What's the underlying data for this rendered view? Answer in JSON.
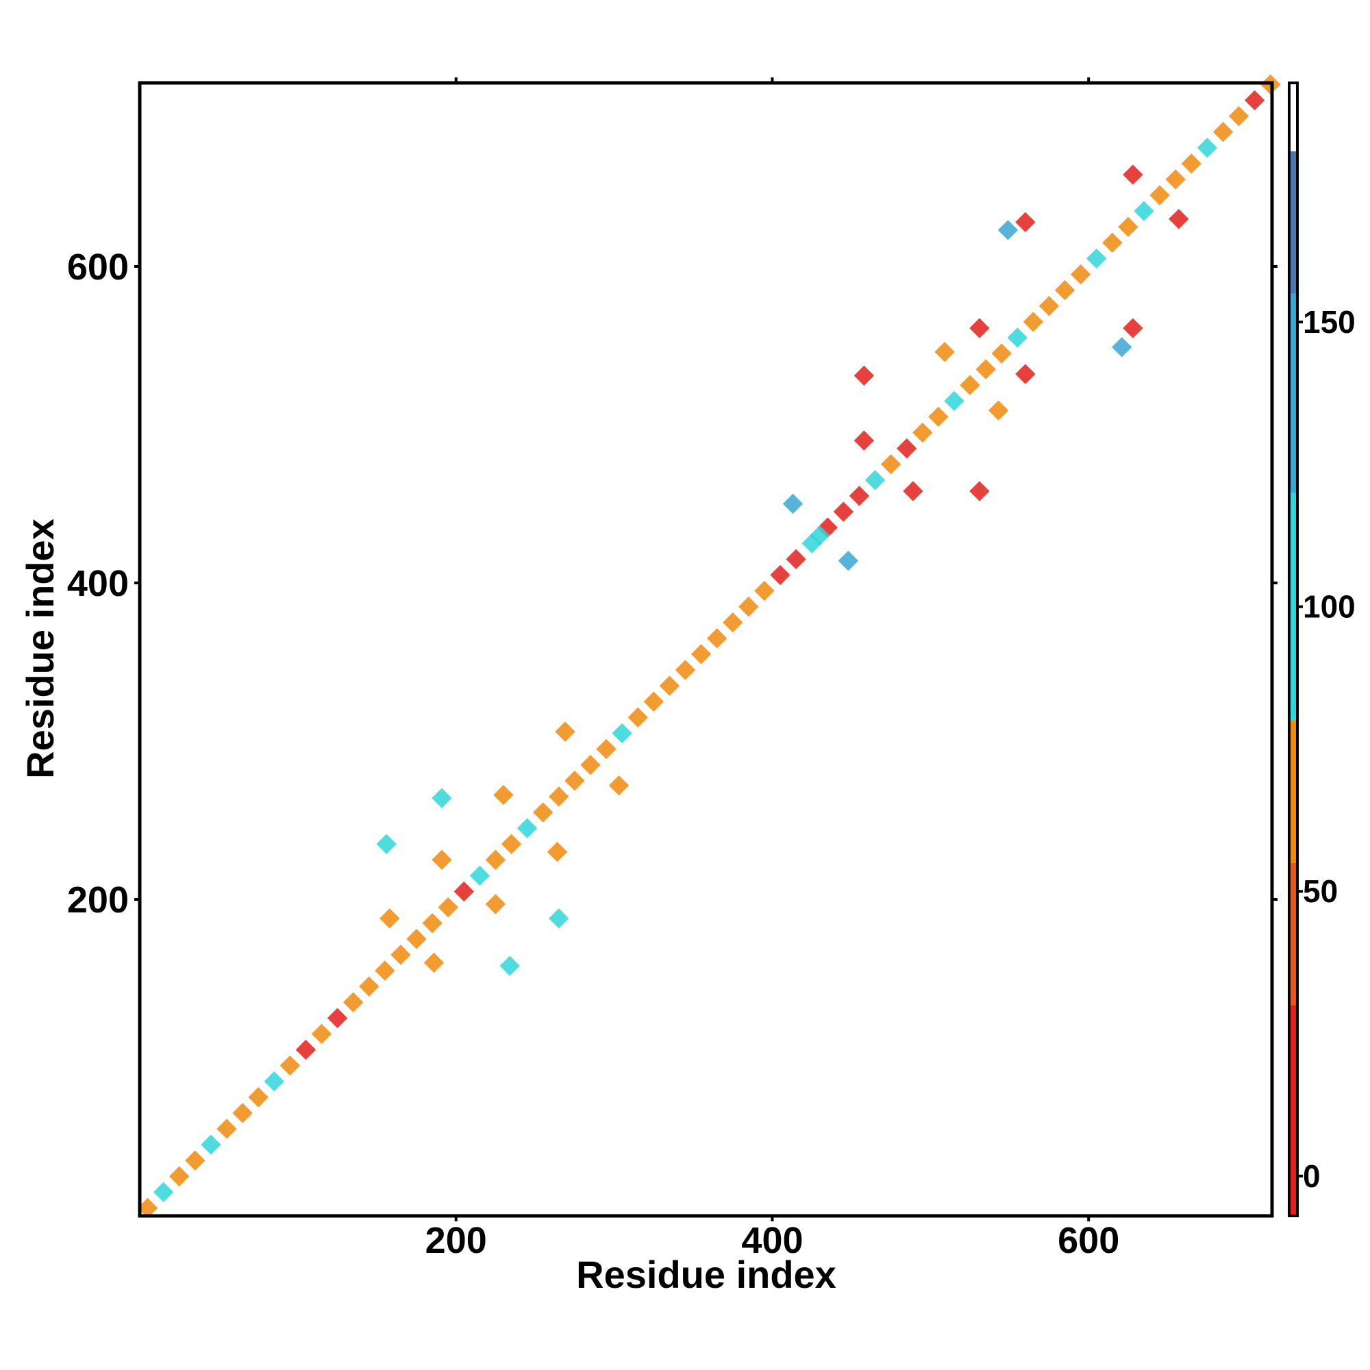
{
  "chart_data": {
    "type": "heatmap",
    "xlabel": "Residue index",
    "ylabel": "Residue index",
    "xlim": [
      0,
      716
    ],
    "ylim": [
      0,
      716
    ],
    "xticks": [
      200,
      400,
      600
    ],
    "yticks": [
      200,
      400,
      600
    ],
    "x": [
      5,
      15,
      25,
      35,
      45,
      55,
      65,
      75,
      85,
      95,
      105,
      115,
      125,
      135,
      145,
      155,
      165,
      175,
      185,
      195,
      205,
      215,
      225,
      235,
      245,
      255,
      265,
      275,
      285,
      295,
      305,
      315,
      325,
      335,
      345,
      355,
      365,
      375,
      385,
      395,
      405,
      415,
      425,
      435,
      445,
      455,
      465,
      475,
      485,
      495,
      505,
      515,
      525,
      535,
      545,
      555,
      565,
      575,
      585,
      595,
      605,
      615,
      625,
      635,
      645,
      655,
      665,
      675,
      685,
      695,
      705,
      715,
      413,
      448,
      430,
      628,
      560,
      657,
      628,
      458,
      458,
      489,
      531,
      531,
      560,
      191,
      156,
      265,
      234,
      230,
      264,
      191,
      225,
      158,
      186,
      269,
      303,
      509,
      543,
      549,
      621
    ],
    "y": [
      5,
      15,
      25,
      35,
      45,
      55,
      65,
      75,
      85,
      95,
      105,
      115,
      125,
      135,
      145,
      155,
      165,
      175,
      185,
      195,
      205,
      215,
      225,
      235,
      245,
      255,
      265,
      275,
      285,
      295,
      305,
      315,
      325,
      335,
      345,
      355,
      365,
      375,
      385,
      395,
      405,
      415,
      425,
      435,
      445,
      455,
      465,
      475,
      485,
      495,
      505,
      515,
      525,
      535,
      545,
      555,
      565,
      575,
      585,
      595,
      605,
      615,
      625,
      635,
      645,
      655,
      665,
      675,
      685,
      695,
      705,
      715,
      450,
      414,
      430,
      658,
      628,
      630,
      561,
      531,
      490,
      458,
      458,
      561,
      532,
      264,
      235,
      188,
      158,
      266,
      230,
      225,
      197,
      188,
      160,
      306,
      272,
      546,
      509,
      623,
      549
    ],
    "values": [
      60,
      95,
      60,
      60,
      95,
      60,
      60,
      60,
      95,
      60,
      5,
      60,
      5,
      60,
      60,
      60,
      60,
      60,
      60,
      60,
      5,
      95,
      60,
      60,
      95,
      60,
      60,
      60,
      60,
      60,
      95,
      60,
      60,
      60,
      60,
      60,
      60,
      60,
      60,
      60,
      5,
      5,
      95,
      5,
      5,
      5,
      95,
      60,
      5,
      60,
      60,
      95,
      60,
      60,
      60,
      95,
      60,
      60,
      60,
      60,
      95,
      60,
      60,
      95,
      60,
      60,
      60,
      95,
      60,
      60,
      5,
      60,
      130,
      130,
      95,
      5,
      5,
      5,
      5,
      5,
      5,
      5,
      5,
      5,
      5,
      95,
      95,
      95,
      95,
      60,
      60,
      60,
      60,
      60,
      60,
      60,
      60,
      55,
      55,
      145,
      145
    ],
    "colorbar": {
      "lim": [
        -7,
        192
      ],
      "ticks": [
        0,
        50,
        100,
        150
      ],
      "bands": [
        {
          "from": -7,
          "to": 30,
          "color": "#e3201b"
        },
        {
          "from": 30,
          "to": 55,
          "color": "#e8561c"
        },
        {
          "from": 55,
          "to": 80,
          "color": "#ef8a0c"
        },
        {
          "from": 80,
          "to": 120,
          "color": "#2fd6d9"
        },
        {
          "from": 120,
          "to": 155,
          "color": "#3aa6d4"
        },
        {
          "from": 155,
          "to": 180,
          "color": "#4b78b0"
        },
        {
          "from": 180,
          "to": 192,
          "color": "#ffffff"
        }
      ]
    }
  }
}
